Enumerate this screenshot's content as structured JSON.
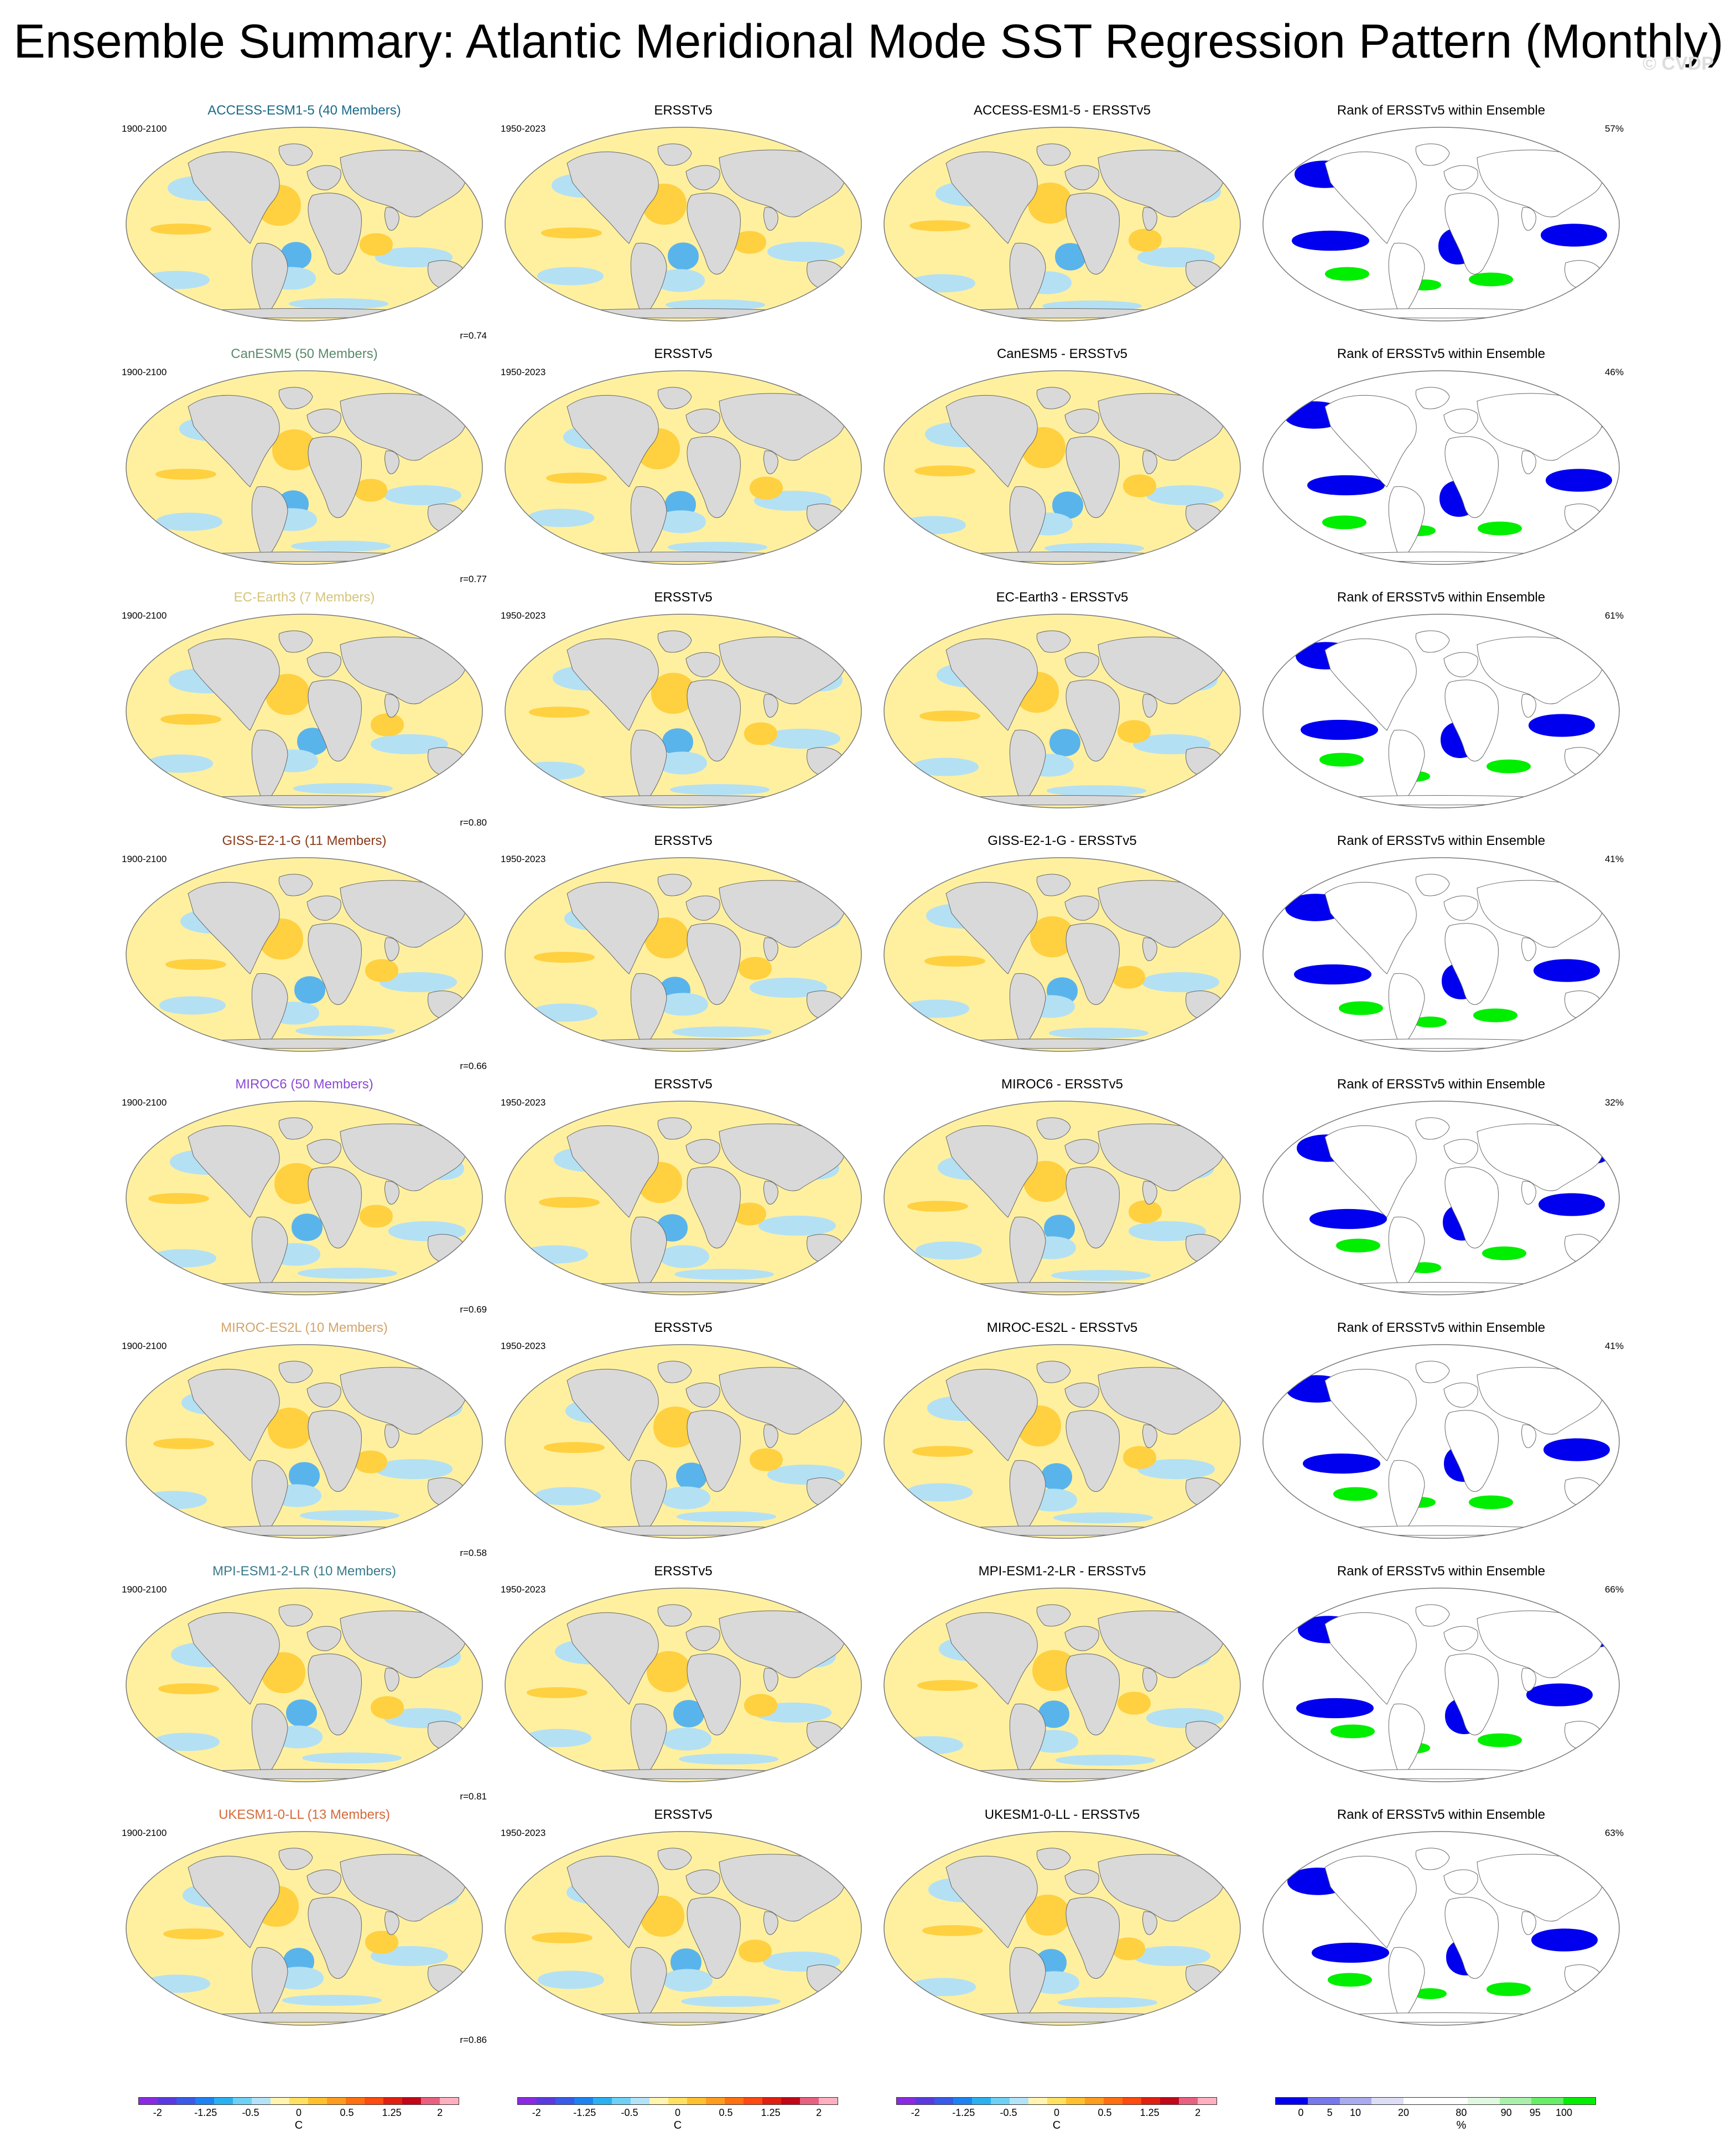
{
  "figure": {
    "title": "Ensemble Summary: Atlantic Meridional Mode SST Regression Pattern (Monthly)",
    "watermark": "© CVDP"
  },
  "rows": [
    {
      "model": "ACCESS-ESM1-5",
      "title": "ACCESS-ESM1-5 (40 Members)",
      "title_color": "#1a6a8a",
      "model_years": "1900-2100",
      "obs_title": "ERSSTv5",
      "obs_years": "1950-2023",
      "diff_title": "ACCESS-ESM1-5 - ERSSTv5",
      "rank_title": "Rank of ERSSTv5 within Ensemble",
      "rank_pct": "57%",
      "corr": "r=0.74"
    },
    {
      "model": "CanESM5",
      "title": "CanESM5 (50 Members)",
      "title_color": "#5a8a6a",
      "model_years": "1900-2100",
      "obs_title": "ERSSTv5",
      "obs_years": "1950-2023",
      "diff_title": "CanESM5 - ERSSTv5",
      "rank_title": "Rank of ERSSTv5 within Ensemble",
      "rank_pct": "46%",
      "corr": "r=0.77"
    },
    {
      "model": "EC-Earth3",
      "title": "EC-Earth3 (7 Members)",
      "title_color": "#d4c47a",
      "model_years": "1900-2100",
      "obs_title": "ERSSTv5",
      "obs_years": "1950-2023",
      "diff_title": "EC-Earth3 - ERSSTv5",
      "rank_title": "Rank of ERSSTv5 within Ensemble",
      "rank_pct": "61%",
      "corr": "r=0.80"
    },
    {
      "model": "GISS-E2-1-G",
      "title": "GISS-E2-1-G (11 Members)",
      "title_color": "#8a3a1a",
      "model_years": "1900-2100",
      "obs_title": "ERSSTv5",
      "obs_years": "1950-2023",
      "diff_title": "GISS-E2-1-G - ERSSTv5",
      "rank_title": "Rank of ERSSTv5 within Ensemble",
      "rank_pct": "41%",
      "corr": "r=0.66"
    },
    {
      "model": "MIROC6",
      "title": "MIROC6 (50 Members)",
      "title_color": "#8a4ad4",
      "model_years": "1900-2100",
      "obs_title": "ERSSTv5",
      "obs_years": "1950-2023",
      "diff_title": "MIROC6 - ERSSTv5",
      "rank_title": "Rank of ERSSTv5 within Ensemble",
      "rank_pct": "32%",
      "corr": "r=0.69"
    },
    {
      "model": "MIROC-ES2L",
      "title": "MIROC-ES2L (10 Members)",
      "title_color": "#d4a46a",
      "model_years": "1900-2100",
      "obs_title": "ERSSTv5",
      "obs_years": "1950-2023",
      "diff_title": "MIROC-ES2L - ERSSTv5",
      "rank_title": "Rank of ERSSTv5 within Ensemble",
      "rank_pct": "41%",
      "corr": "r=0.58"
    },
    {
      "model": "MPI-ESM1-2-LR",
      "title": "MPI-ESM1-2-LR (10 Members)",
      "title_color": "#3a7a8a",
      "model_years": "1900-2100",
      "obs_title": "ERSSTv5",
      "obs_years": "1950-2023",
      "diff_title": "MPI-ESM1-2-LR - ERSSTv5",
      "rank_title": "Rank of ERSSTv5 within Ensemble",
      "rank_pct": "66%",
      "corr": "r=0.81"
    },
    {
      "model": "UKESM1-0-LL",
      "title": "UKESM1-0-LL (13 Members)",
      "title_color": "#d46a3a",
      "model_years": "1900-2100",
      "obs_title": "ERSSTv5",
      "obs_years": "1950-2023",
      "diff_title": "UKESM1-0-LL - ERSSTv5",
      "rank_title": "Rank of ERSSTv5 within Ensemble",
      "rank_pct": "63%",
      "corr": "r=0.86"
    }
  ],
  "colorbars": {
    "sst": {
      "colors": [
        "#8a2be2",
        "#5a3ae0",
        "#3a5ae8",
        "#1e82f0",
        "#2ab0f0",
        "#6ed0f4",
        "#b4e2f6",
        "#fff4b0",
        "#ffe060",
        "#ffc030",
        "#ff9c20",
        "#ff7010",
        "#ff4a10",
        "#e02010",
        "#c00818",
        "#e86080",
        "#ffb0c0"
      ],
      "ticks": [
        "-2",
        "-1.25",
        "-0.5",
        "0",
        "0.5",
        "1.25",
        "2"
      ],
      "unit": "C"
    },
    "rank": {
      "colors": [
        "#0000ee",
        "#7777ee",
        "#aaaaee",
        "#ddddf6",
        "#ffffff",
        "#ffffff",
        "#e0f8e0",
        "#aaf0aa",
        "#66ee66",
        "#00ee00"
      ],
      "ticks": [
        "0",
        "5",
        "10",
        "20",
        "80",
        "90",
        "95",
        "100"
      ],
      "unit": "%"
    }
  },
  "palette": {
    "land": "#d9d9d9",
    "warm": "#fff0a0",
    "warm2": "#ffd040",
    "cool": "#b4e0f4",
    "cool2": "#5ab4ec",
    "rank_low": "#0000ee",
    "rank_high": "#00ee00",
    "rank_mid": "#ffffff"
  }
}
